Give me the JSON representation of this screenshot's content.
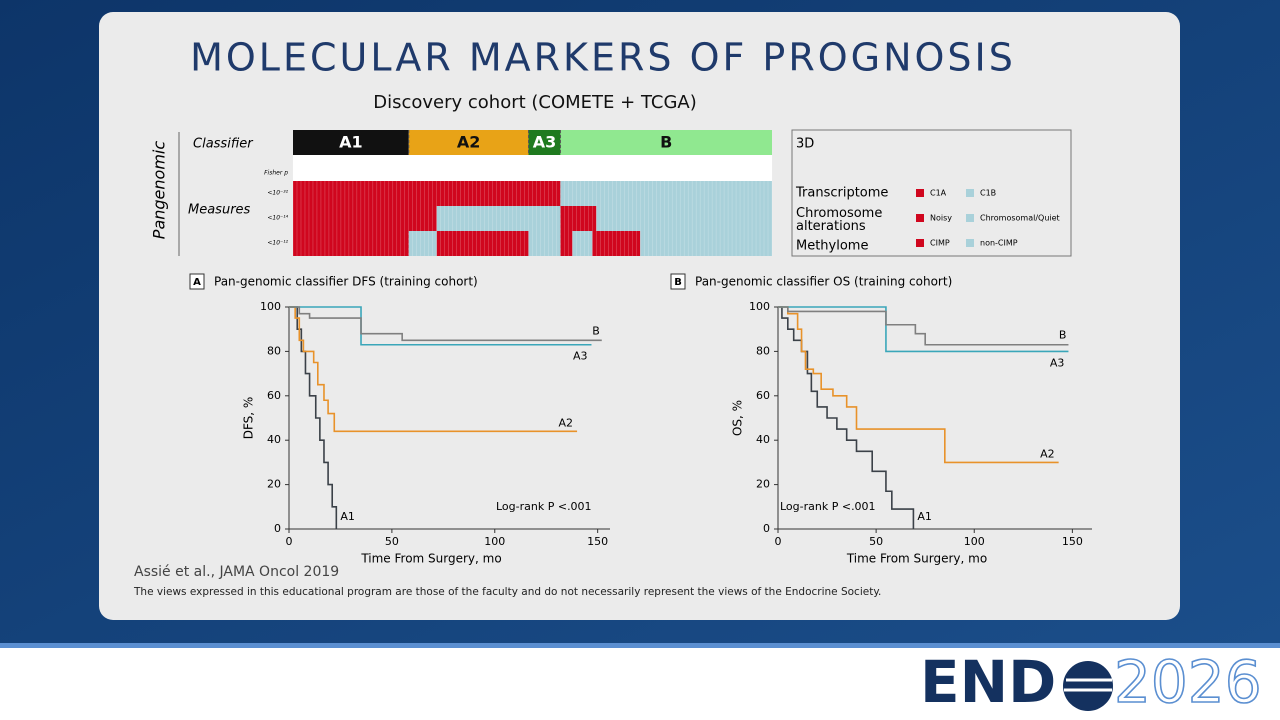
{
  "title": "MOLECULAR MARKERS OF PROGNOSIS",
  "subtitle": "Discovery cohort (COMETE + TCGA)",
  "heatmap": {
    "side_label": "Pangenomic",
    "classifier_label": "Classifier",
    "measures_label": "Measures",
    "fisher_label": "Fisher p",
    "box_label": "3D",
    "groups": [
      {
        "label": "A1",
        "n": 29,
        "color": "#111111",
        "text_color": "#ffffff"
      },
      {
        "label": "A2",
        "n": 30,
        "color": "#e8a317",
        "text_color": "#111111"
      },
      {
        "label": "A3",
        "n": 8,
        "color": "#1f7a1f",
        "text_color": "#ffffff"
      },
      {
        "label": "B",
        "n": 53,
        "color": "#90e890",
        "text_color": "#111111"
      }
    ],
    "rows": [
      {
        "label": "Transcriptome",
        "p": "<10⁻³²",
        "legend": [
          {
            "label": "C1A",
            "color": "#d0061e"
          },
          {
            "label": "C1B",
            "color": "#a9d1da"
          }
        ],
        "runs": [
          {
            "color": "#d0061e",
            "n": 67
          },
          {
            "color": "#a9d1da",
            "n": 53
          }
        ]
      },
      {
        "label": "Chromosome alterations",
        "p": "<10⁻¹⁴",
        "legend": [
          {
            "label": "Noisy",
            "color": "#d0061e"
          },
          {
            "label": "Chromosomal/Quiet",
            "color": "#a9d1da"
          }
        ],
        "runs": [
          {
            "color": "#d0061e",
            "n": 36
          },
          {
            "color": "#a9d1da",
            "n": 31
          },
          {
            "color": "#d0061e",
            "n": 9
          },
          {
            "color": "#a9d1da",
            "n": 44
          }
        ]
      },
      {
        "label": "Methylome",
        "p": "<10⁻¹²",
        "legend": [
          {
            "label": "CIMP",
            "color": "#d0061e"
          },
          {
            "label": "non-CIMP",
            "color": "#a9d1da"
          }
        ],
        "runs": [
          {
            "color": "#d0061e",
            "n": 29
          },
          {
            "color": "#a9d1da",
            "n": 7
          },
          {
            "color": "#d0061e",
            "n": 23
          },
          {
            "color": "#a9d1da",
            "n": 8
          },
          {
            "color": "#d0061e",
            "n": 3
          },
          {
            "color": "#a9d1da",
            "n": 5
          },
          {
            "color": "#d0061e",
            "n": 12
          },
          {
            "color": "#a9d1da",
            "n": 33
          }
        ]
      }
    ]
  },
  "chart_data": [
    {
      "type": "step",
      "panel": "A",
      "title": "Pan-genomic classifier DFS (training cohort)",
      "xlabel": "Time From Surgery, mo",
      "ylabel": "DFS, %",
      "annotation": "Log-rank P <.001",
      "xlim": [
        0,
        156
      ],
      "ylim": [
        0,
        100
      ],
      "xticks": [
        0,
        50,
        100,
        150
      ],
      "yticks": [
        0,
        20,
        40,
        60,
        80,
        100
      ],
      "series": [
        {
          "name": "A1",
          "color": "#3b4148",
          "x": [
            0,
            4,
            6,
            8,
            10,
            13,
            15,
            17,
            19,
            21,
            23
          ],
          "values": [
            100,
            90,
            80,
            70,
            60,
            50,
            40,
            30,
            20,
            10,
            0
          ]
        },
        {
          "name": "A2",
          "color": "#e8922a",
          "x": [
            0,
            3,
            5,
            7,
            12,
            14,
            17,
            19,
            22,
            140
          ],
          "values": [
            100,
            95,
            85,
            80,
            75,
            65,
            58,
            52,
            44,
            44
          ]
        },
        {
          "name": "A3",
          "color": "#3aa6b9",
          "x": [
            0,
            35,
            147
          ],
          "values": [
            100,
            83,
            83
          ]
        },
        {
          "name": "B",
          "color": "#7f7f7f",
          "x": [
            0,
            5,
            10,
            35,
            55,
            152
          ],
          "values": [
            100,
            97,
            95,
            88,
            85,
            85
          ]
        }
      ]
    },
    {
      "type": "step",
      "panel": "B",
      "title": "Pan-genomic classifier OS (training cohort)",
      "xlabel": "Time From Surgery, mo",
      "ylabel": "OS, %",
      "annotation": "Log-rank P <.001",
      "xlim": [
        0,
        160
      ],
      "ylim": [
        0,
        100
      ],
      "xticks": [
        0,
        50,
        100,
        150
      ],
      "yticks": [
        0,
        20,
        40,
        60,
        80,
        100
      ],
      "series": [
        {
          "name": "A1",
          "color": "#3b4148",
          "x": [
            0,
            2,
            5,
            8,
            12,
            15,
            17,
            20,
            25,
            30,
            35,
            40,
            48,
            55,
            58,
            69
          ],
          "values": [
            100,
            95,
            90,
            85,
            80,
            70,
            62,
            55,
            50,
            45,
            40,
            35,
            26,
            17,
            9,
            0
          ]
        },
        {
          "name": "A2",
          "color": "#e8922a",
          "x": [
            0,
            5,
            10,
            12,
            14,
            18,
            22,
            28,
            35,
            40,
            85,
            143
          ],
          "values": [
            100,
            97,
            90,
            80,
            72,
            70,
            63,
            60,
            55,
            45,
            30,
            30
          ]
        },
        {
          "name": "A3",
          "color": "#3aa6b9",
          "x": [
            0,
            55,
            148
          ],
          "values": [
            100,
            80,
            80
          ]
        },
        {
          "name": "B",
          "color": "#7f7f7f",
          "x": [
            0,
            5,
            55,
            70,
            75,
            148
          ],
          "values": [
            100,
            98,
            92,
            88,
            83,
            83
          ]
        }
      ]
    }
  ],
  "citation": "Assié et al., JAMA Oncol 2019",
  "disclaimer": "The views expressed in this educational program are those of the faculty and do not necessarily represent the views of the Endocrine Society.",
  "logo": {
    "left": "END",
    "right": "2026"
  }
}
